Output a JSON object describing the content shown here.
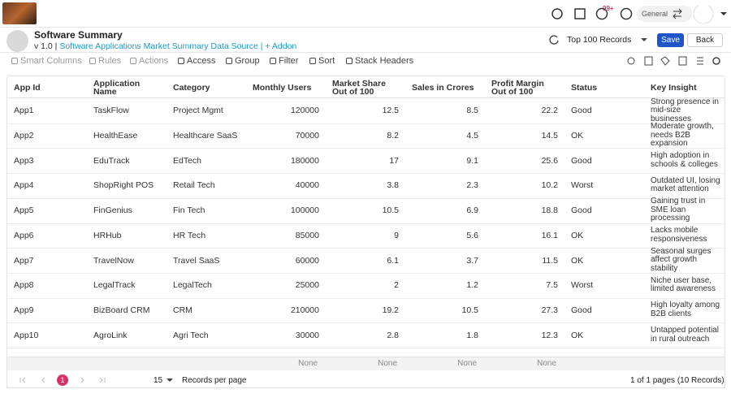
{
  "header": {
    "notification_badge": "99+",
    "workspace": "General"
  },
  "page": {
    "title": "Software Summary",
    "version": "v 1.0 |",
    "source": "Software Applications Market Summary Data Source | + Addon",
    "records_view": "Top 100 Records",
    "save": "Save",
    "back": "Back"
  },
  "toolbar": [
    "Smart Columns",
    "Rules",
    "Actions",
    "Access",
    "Group",
    "Filter",
    "Sort",
    "Stack Headers"
  ],
  "table": {
    "columns": [
      "App Id",
      "Application Name",
      "Category",
      "Monthly Users",
      "Market Share Out of 100",
      "Sales in Crores",
      "Profit Margin Out of 100",
      "Status",
      "Key Insight"
    ],
    "rows": [
      [
        "App1",
        "TaskFlow",
        "Project Mgmt",
        120000,
        12.5,
        8.5,
        22.2,
        "Good",
        "Strong presence in mid-size businesses"
      ],
      [
        "App2",
        "HealthEase",
        "Healthcare SaaS",
        70000,
        8.2,
        4.5,
        14.5,
        "OK",
        "Moderate growth, needs B2B expansion"
      ],
      [
        "App3",
        "EduTrack",
        "EdTech",
        180000,
        17,
        9.1,
        25.6,
        "Good",
        "High adoption in schools & colleges"
      ],
      [
        "App4",
        "ShopRight POS",
        "Retail Tech",
        40000,
        3.8,
        2.3,
        10.2,
        "Worst",
        "Outdated UI, losing market attention"
      ],
      [
        "App5",
        "FinGenius",
        "Fin Tech",
        100000,
        10.5,
        6.9,
        18.8,
        "Good",
        "Gaining trust in SME loan processing"
      ],
      [
        "App6",
        "HRHub",
        "HR Tech",
        85000,
        9,
        5.6,
        16.1,
        "OK",
        "Lacks mobile responsiveness"
      ],
      [
        "App7",
        "TravelNow",
        "Travel SaaS",
        60000,
        6.1,
        3.7,
        11.5,
        "OK",
        "Seasonal surges affect growth stability"
      ],
      [
        "App8",
        "LegalTrack",
        "LegalTech",
        25000,
        2,
        1.2,
        7.5,
        "Worst",
        "Niche user base, limited awareness"
      ],
      [
        "App9",
        "BizBoard CRM",
        "CRM",
        210000,
        19.2,
        10.5,
        27.3,
        "Good",
        "High loyalty among B2B clients"
      ],
      [
        "App10",
        "AgroLink",
        "Agri Tech",
        30000,
        2.8,
        1.8,
        12.3,
        "OK",
        "Untapped potential in rural outreach"
      ]
    ],
    "footer": [
      "None",
      "None",
      "None",
      "None"
    ]
  },
  "pagination": {
    "current_page": "1",
    "page_size": "15",
    "page_size_label": "Records per page",
    "summary": "1 of 1 pages (10 Records)"
  }
}
